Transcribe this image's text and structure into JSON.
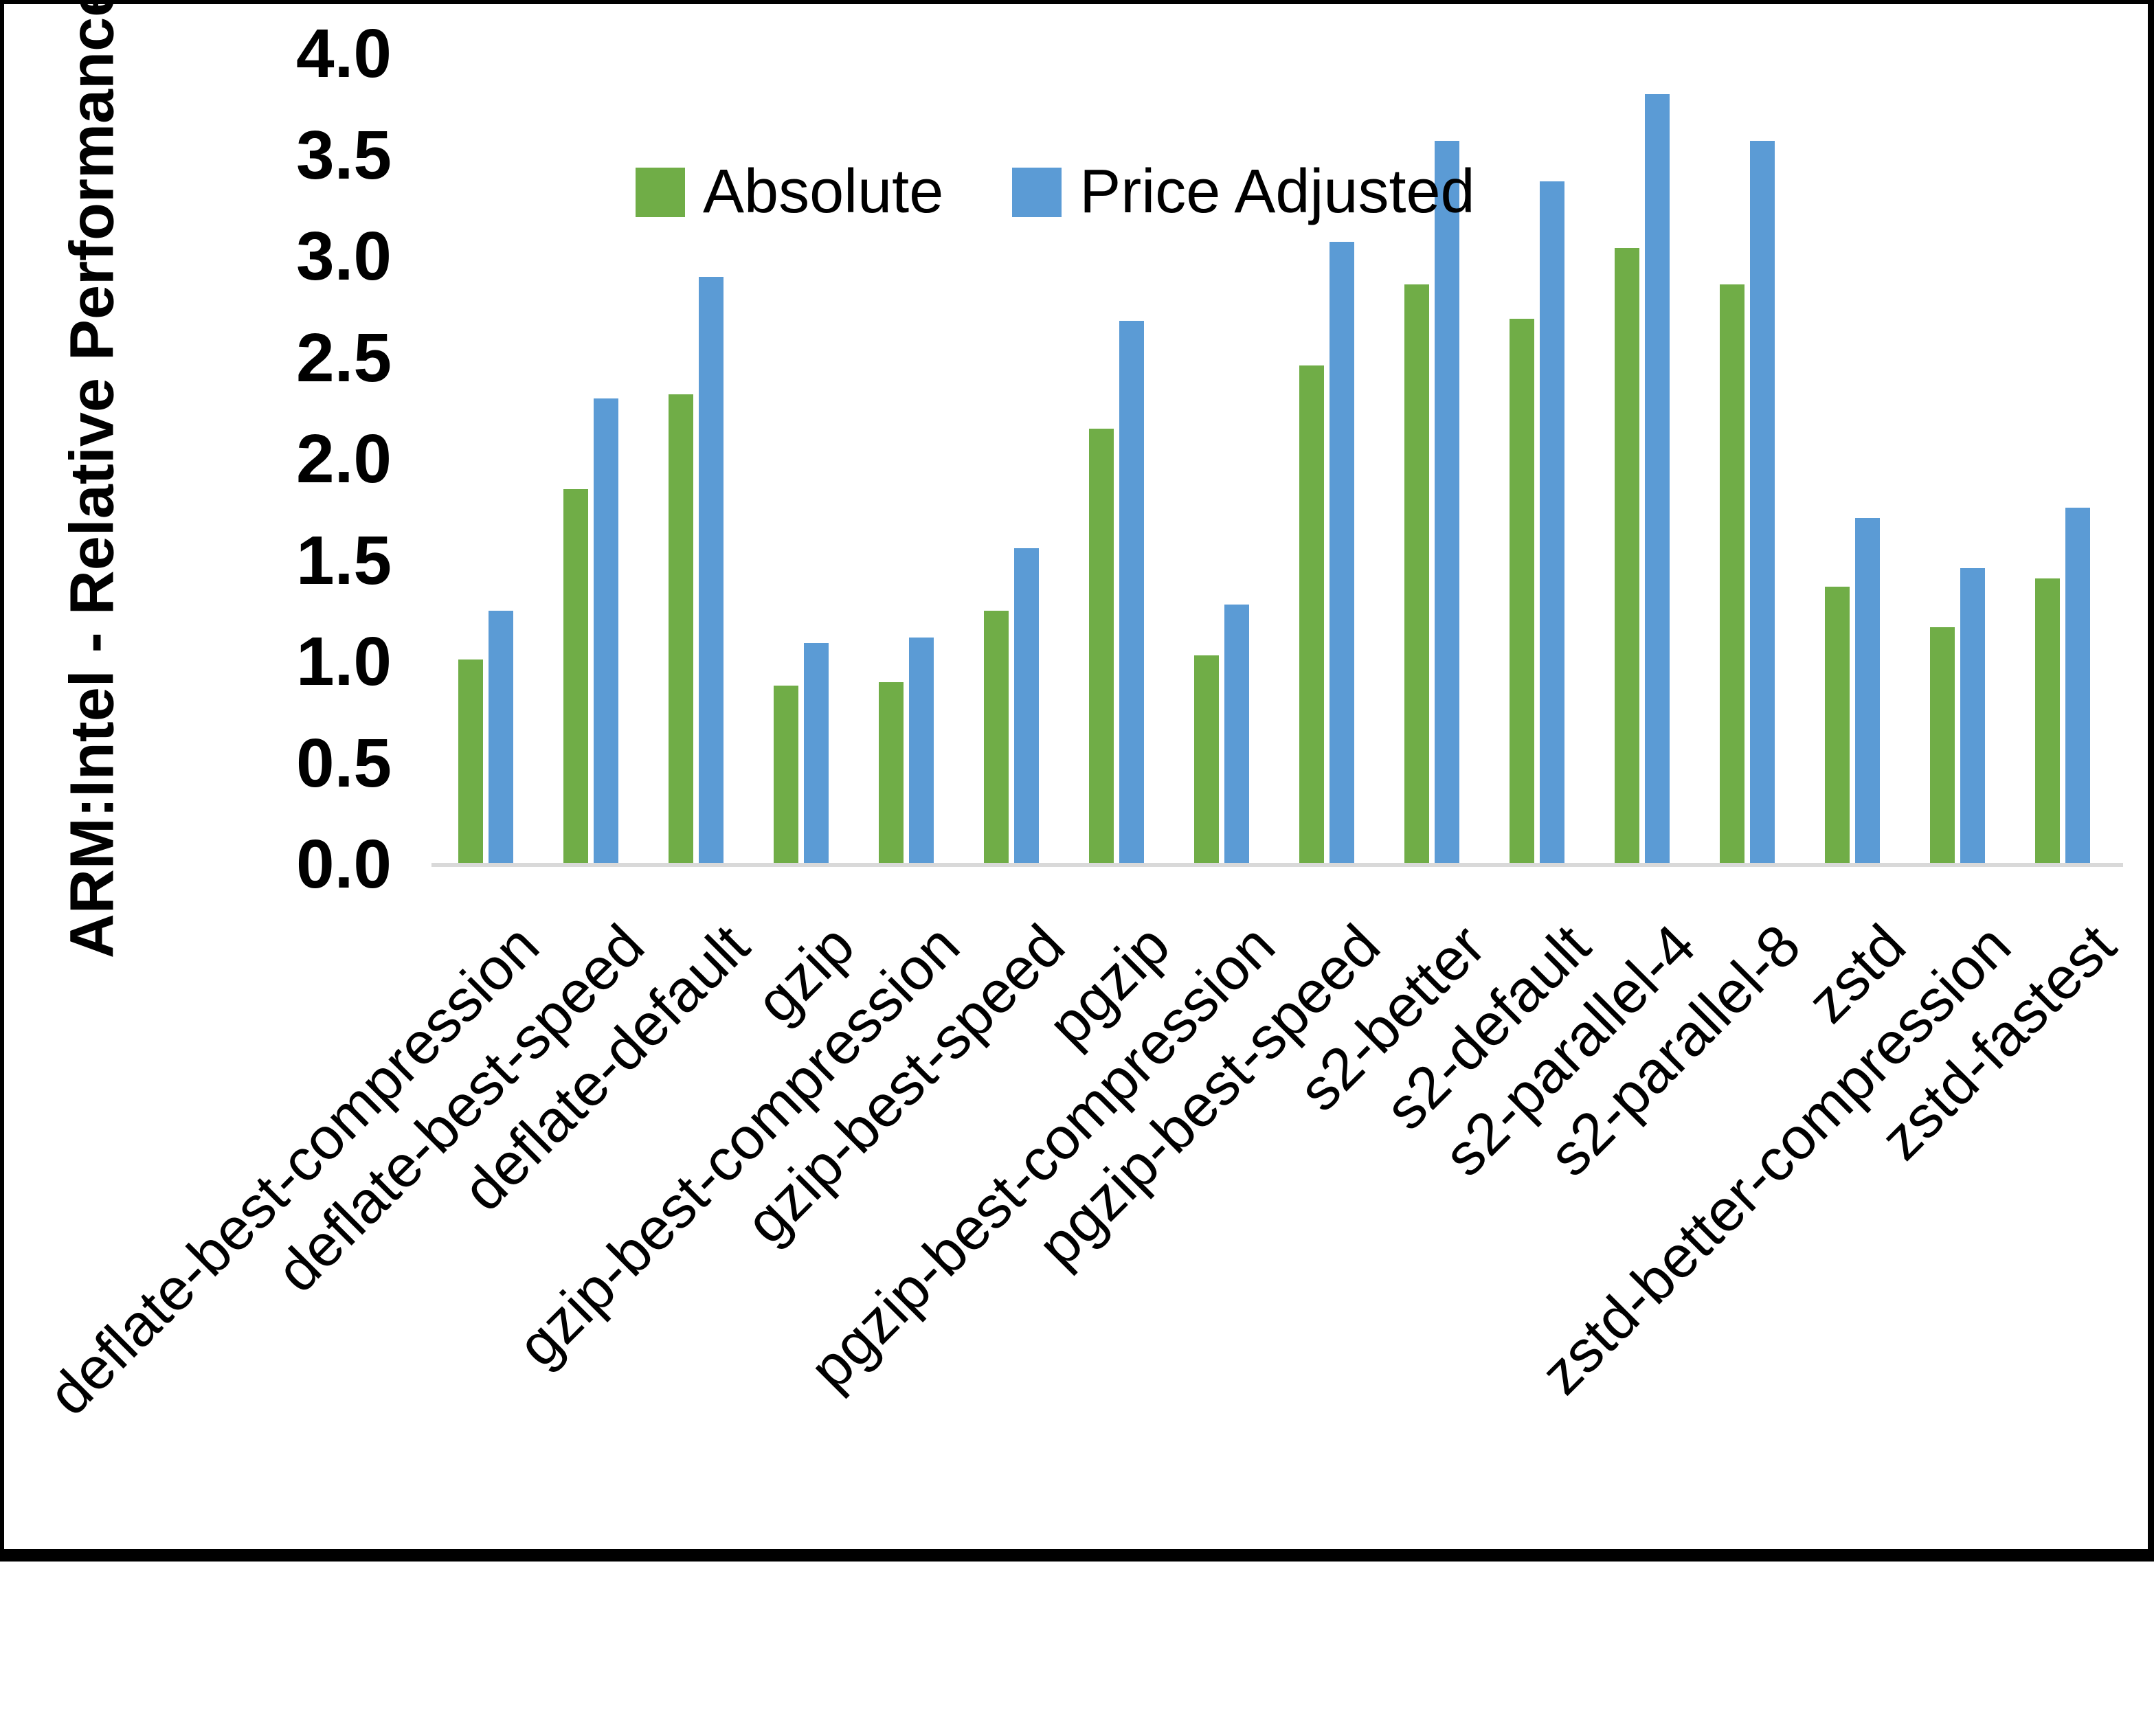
{
  "chart_data": {
    "type": "bar",
    "title": "",
    "ylabel": "ARM:Intel - Relative Performance",
    "xlabel": "",
    "ylim": [
      0.0,
      4.0
    ],
    "ytick_step": 0.5,
    "yticks": [
      "0.0",
      "0.5",
      "1.0",
      "1.5",
      "2.0",
      "2.5",
      "3.0",
      "3.5",
      "4.0"
    ],
    "grid": false,
    "legend_position": "top-center",
    "background_color": "#FFFFFF",
    "axis_line_color": "#D9D9D9",
    "frame_color": "#000000",
    "categories": [
      "deflate-best-compression",
      "deflate-best-speed",
      "deflate-default",
      "gzip",
      "gzip-best-compression",
      "gzip-best-speed",
      "pgzip",
      "pgzip-best-compression",
      "pgzip-best-speed",
      "s2-better",
      "s2-default",
      "s2-parallel-4",
      "s2-parallel-8",
      "zstd",
      "zstd-better-compression",
      "zstd-fastest"
    ],
    "series": [
      {
        "name": "Absolute",
        "color": "#70AD47",
        "values": [
          1.01,
          1.85,
          2.32,
          0.88,
          0.9,
          1.25,
          2.15,
          1.03,
          2.46,
          2.86,
          2.69,
          3.04,
          2.86,
          1.37,
          1.17,
          1.41
        ]
      },
      {
        "name": "Price Adjusted",
        "color": "#5B9BD5",
        "values": [
          1.25,
          2.3,
          2.9,
          1.09,
          1.12,
          1.56,
          2.68,
          1.28,
          3.07,
          3.57,
          3.37,
          3.8,
          3.57,
          1.71,
          1.46,
          1.76
        ]
      }
    ]
  }
}
